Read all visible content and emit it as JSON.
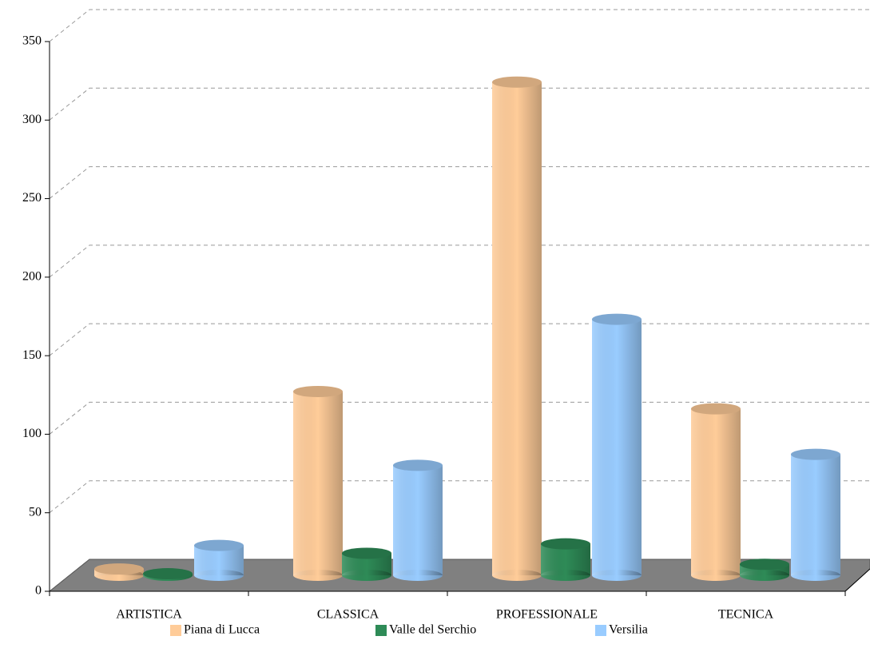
{
  "chart_data": {
    "type": "bar3d",
    "categories": [
      "ARTISTICA",
      "CLASSICA",
      "PROFESSIONALE",
      "TECNICA"
    ],
    "series": [
      {
        "name": "Piana di Lucca",
        "color": "#ffcc99",
        "values": [
          4,
          117,
          314,
          106
        ]
      },
      {
        "name": "Valle del Serchio",
        "color": "#2e8b57",
        "values": [
          1,
          14,
          20,
          7
        ]
      },
      {
        "name": "Versilia",
        "color": "#99ccff",
        "values": [
          19,
          70,
          163,
          77
        ]
      }
    ],
    "ylim": [
      0,
      350
    ],
    "yticks": [
      0,
      50,
      100,
      150,
      200,
      250,
      300,
      350
    ],
    "grid": true
  }
}
